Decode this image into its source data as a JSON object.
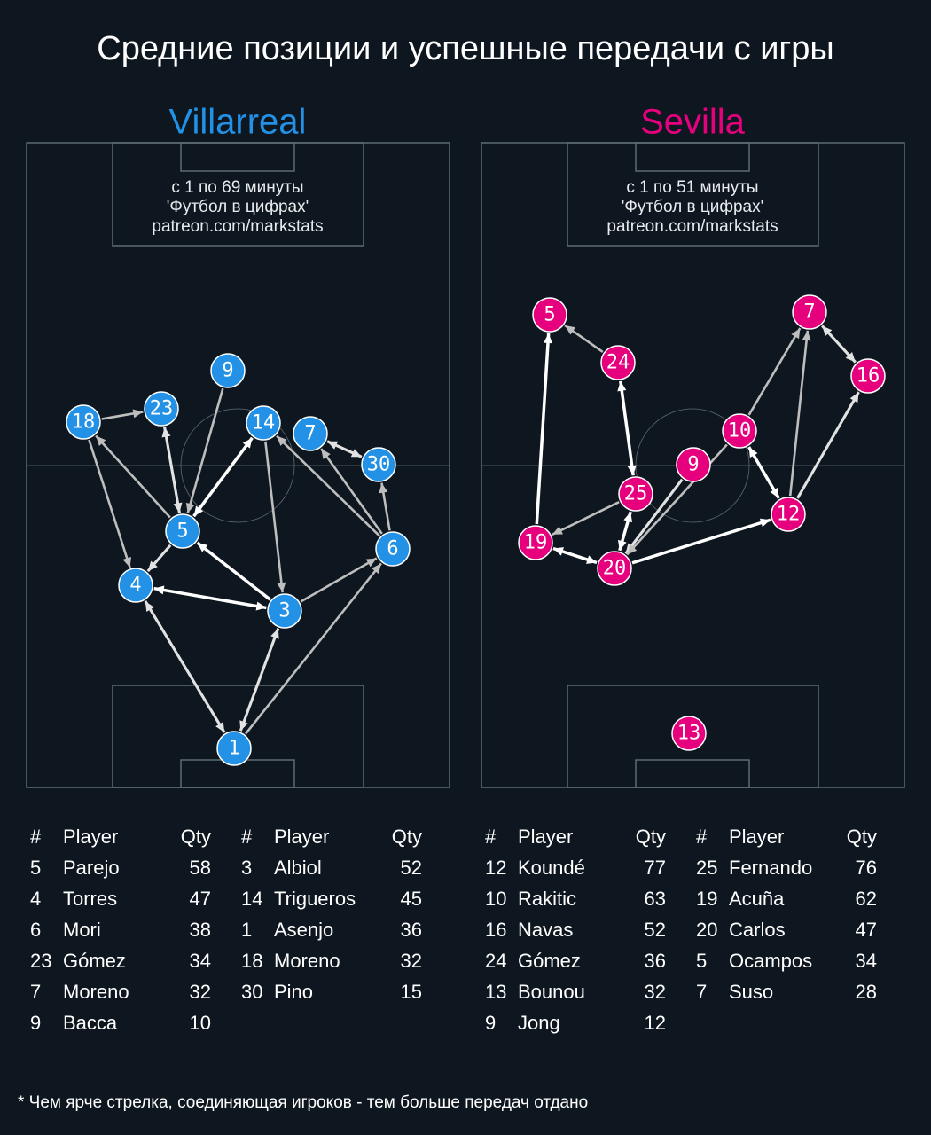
{
  "title": "Средние позиции и успешные передачи с игры",
  "teams": [
    {
      "name": "Villarreal",
      "note": [
        "с 1 по 69 минуты",
        "'Футбол в цифрах'",
        "patreon.com/markstats"
      ],
      "nodes": [
        9,
        18,
        23,
        14,
        7,
        30,
        5,
        6,
        4,
        3,
        1
      ],
      "tables": [
        {
          "headers": [
            "#",
            "Player",
            "Qty"
          ],
          "rows": [
            [
              5,
              "Parejo",
              58
            ],
            [
              4,
              "Torres",
              47
            ],
            [
              6,
              "Mori",
              38
            ],
            [
              23,
              "Gómez",
              34
            ],
            [
              7,
              "Moreno",
              32
            ],
            [
              9,
              "Bacca",
              10
            ]
          ]
        },
        {
          "headers": [
            "#",
            "Player",
            "Qty"
          ],
          "rows": [
            [
              3,
              "Albiol",
              52
            ],
            [
              14,
              "Trigueros",
              45
            ],
            [
              1,
              "Asenjo",
              36
            ],
            [
              18,
              "Moreno",
              32
            ],
            [
              30,
              "Pino",
              15
            ]
          ]
        }
      ]
    },
    {
      "name": "Sevilla",
      "note": [
        "с 1 по 51 минуты",
        "'Футбол в цифрах'",
        "patreon.com/markstats"
      ],
      "nodes": [
        5,
        24,
        7,
        16,
        10,
        9,
        25,
        12,
        19,
        20,
        13
      ],
      "tables": [
        {
          "headers": [
            "#",
            "Player",
            "Qty"
          ],
          "rows": [
            [
              12,
              "Koundé",
              77
            ],
            [
              10,
              "Rakitic",
              63
            ],
            [
              16,
              "Navas",
              52
            ],
            [
              24,
              "Gómez",
              36
            ],
            [
              13,
              "Bounou",
              32
            ],
            [
              9,
              "Jong",
              12
            ]
          ]
        },
        {
          "headers": [
            "#",
            "Player",
            "Qty"
          ],
          "rows": [
            [
              25,
              "Fernando",
              76
            ],
            [
              19,
              "Acuña",
              62
            ],
            [
              20,
              "Carlos",
              47
            ],
            [
              5,
              "Ocampos",
              34
            ],
            [
              7,
              "Suso",
              28
            ]
          ]
        }
      ]
    }
  ],
  "footnote": "* Чем ярче стрелка, соединяющая игроков - тем больше передач отдано"
}
